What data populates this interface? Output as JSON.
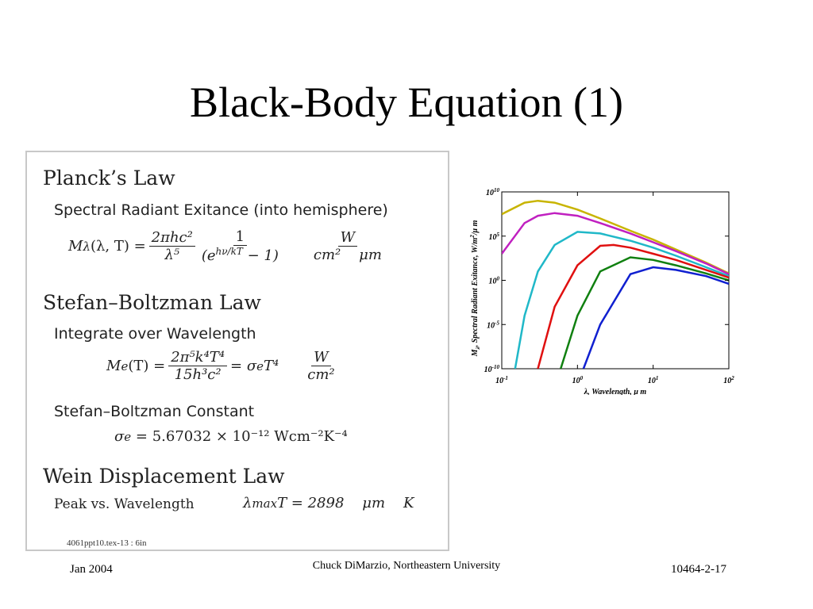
{
  "title": "Black-Body Equation (1)",
  "panel": {
    "planck": {
      "heading": "Planck’s Law",
      "subheading": "Spectral Radiant Exitance (into hemisphere)",
      "equation": {
        "lhs": "M",
        "lhs_sub": "λ",
        "lhs_args": "(λ, T) =",
        "num1": "2πhc²",
        "den1": "λ⁵",
        "num2": "1",
        "den2_open": "(e",
        "den2_exp": "hν/kT",
        "den2_close": " − 1)",
        "unit_num": "W",
        "unit_den": "cm²    μm"
      }
    },
    "stefan": {
      "heading": "Stefan–Boltzman Law",
      "subheading": "Integrate over Wavelength",
      "equation": {
        "lhs": "M",
        "lhs_sub": "e",
        "lhs_args": "(T) =",
        "num": "2π⁵k⁴T⁴",
        "den": "15h³c²",
        "rhs": "= σ",
        "rhs_sub": "e",
        "rhs_tail": "T⁴",
        "unit_num": "W",
        "unit_den": "cm²"
      }
    },
    "constant": {
      "heading": "Stefan–Boltzman Constant",
      "equation": {
        "lhs": "σ",
        "lhs_sub": "e",
        "rhs": " = 5.67032 × 10⁻¹² Wcm⁻²K⁻⁴"
      }
    },
    "wein": {
      "heading": "Wein Displacement Law",
      "label": "Peak vs. Wavelength",
      "equation": {
        "lhs": "λ",
        "lhs_sub": "max",
        "rhs": "T = 2898    μm    K"
      }
    },
    "note": "4061ppt10.tex-13 : 6in"
  },
  "chart_data": {
    "type": "line",
    "y_label": {
      "symbol": "M",
      "sub": "λ",
      "text": ", Spectral Radiant Exitance, W/m",
      "sup": "2",
      "tail": "/μ m"
    },
    "x_label": "λ, Wavelength, μ m",
    "x_scale": "log",
    "y_scale": "log",
    "xlim": [
      0.1,
      100
    ],
    "ylim": [
      1e-10,
      10000000000.0
    ],
    "xticks": [
      {
        "value": 0.1,
        "label": "10",
        "exponent": "-1"
      },
      {
        "value": 1,
        "label": "10",
        "exponent": "0"
      },
      {
        "value": 10,
        "label": "10",
        "exponent": "1"
      },
      {
        "value": 100,
        "label": "10",
        "exponent": "2"
      }
    ],
    "yticks": [
      {
        "value": 10000000000.0,
        "label": "10",
        "exponent": "10"
      },
      {
        "value": 100000.0,
        "label": "10",
        "exponent": "5"
      },
      {
        "value": 1,
        "label": "10",
        "exponent": "0"
      },
      {
        "value": 1e-05,
        "label": "10",
        "exponent": "-5"
      },
      {
        "value": 1e-10,
        "label": "10",
        "exponent": "-10"
      }
    ],
    "series": [
      {
        "color": "#c8b400",
        "x": [
          0.1,
          0.2,
          0.3,
          0.5,
          1,
          2,
          5,
          10,
          20,
          50,
          100
        ],
        "values": [
          30000000.0,
          600000000.0,
          1000000000.0,
          600000000.0,
          100000000.0,
          10000000.0,
          400000.0,
          40000.0,
          3000.0,
          100,
          6
        ]
      },
      {
        "color": "#c020c0",
        "x": [
          0.1,
          0.2,
          0.3,
          0.5,
          1,
          2,
          5,
          10,
          20,
          50,
          100
        ],
        "values": [
          1000.0,
          3000000.0,
          20000000.0,
          40000000.0,
          20000000.0,
          3000000.0,
          200000.0,
          20000.0,
          2000.0,
          80,
          5
        ]
      },
      {
        "color": "#20b8c8",
        "x": [
          0.15,
          0.2,
          0.3,
          0.5,
          1,
          2,
          5,
          10,
          20,
          50,
          100
        ],
        "values": [
          1e-10,
          0.0001,
          10,
          10000.0,
          300000.0,
          200000.0,
          30000.0,
          5000.0,
          600,
          30,
          3
        ]
      },
      {
        "color": "#e01010",
        "x": [
          0.3,
          0.5,
          1,
          2,
          3,
          5,
          10,
          20,
          50,
          100
        ],
        "values": [
          1e-10,
          0.001,
          50,
          8000.0,
          10000.0,
          5000.0,
          1000.0,
          200,
          15,
          2
        ]
      },
      {
        "color": "#108010",
        "x": [
          0.6,
          1,
          2,
          5,
          10,
          20,
          50,
          100
        ],
        "values": [
          1e-10,
          0.0001,
          10,
          400,
          200,
          50,
          6,
          1
        ]
      },
      {
        "color": "#1020d0",
        "x": [
          1.2,
          2,
          5,
          10,
          20,
          50,
          100
        ],
        "values": [
          1e-10,
          1e-05,
          5,
          30,
          15,
          3,
          0.4
        ]
      }
    ]
  },
  "footer": {
    "left": "Jan 2004",
    "center": "Chuck DiMarzio, Northeastern University",
    "right": "10464-2-17"
  }
}
